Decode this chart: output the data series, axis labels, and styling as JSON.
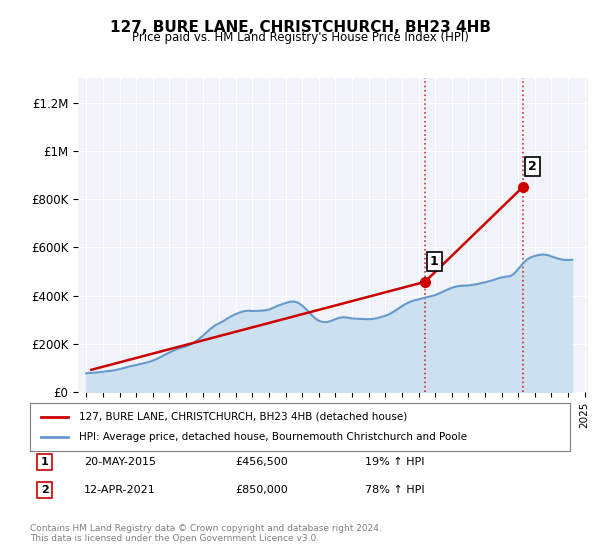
{
  "title": "127, BURE LANE, CHRISTCHURCH, BH23 4HB",
  "subtitle": "Price paid vs. HM Land Registry's House Price Index (HPI)",
  "ylabel_ticks": [
    "£0",
    "£200K",
    "£400K",
    "£600K",
    "£800K",
    "£1M",
    "£1.2M"
  ],
  "ytick_values": [
    0,
    200000,
    400000,
    600000,
    800000,
    1000000,
    1200000
  ],
  "ylim": [
    0,
    1300000
  ],
  "house_color": "#cc0000",
  "hpi_color": "#6699cc",
  "hpi_fill_color": "#cce0f0",
  "bg_color": "#f0f4fa",
  "legend_label_house": "127, BURE LANE, CHRISTCHURCH, BH23 4HB (detached house)",
  "legend_label_hpi": "HPI: Average price, detached house, Bournemouth Christchurch and Poole",
  "sale1_label": "1",
  "sale1_date": "20-MAY-2015",
  "sale1_price": "£456,500",
  "sale1_pct": "19% ↑ HPI",
  "sale2_label": "2",
  "sale2_date": "12-APR-2021",
  "sale2_price": "£850,000",
  "sale2_pct": "78% ↑ HPI",
  "footer": "Contains HM Land Registry data © Crown copyright and database right 2024.\nThis data is licensed under the Open Government Licence v3.0.",
  "hpi_years": [
    1995,
    1995.25,
    1995.5,
    1995.75,
    1996,
    1996.25,
    1996.5,
    1996.75,
    1997,
    1997.25,
    1997.5,
    1997.75,
    1998,
    1998.25,
    1998.5,
    1998.75,
    1999,
    1999.25,
    1999.5,
    1999.75,
    2000,
    2000.25,
    2000.5,
    2000.75,
    2001,
    2001.25,
    2001.5,
    2001.75,
    2002,
    2002.25,
    2002.5,
    2002.75,
    2003,
    2003.25,
    2003.5,
    2003.75,
    2004,
    2004.25,
    2004.5,
    2004.75,
    2005,
    2005.25,
    2005.5,
    2005.75,
    2006,
    2006.25,
    2006.5,
    2006.75,
    2007,
    2007.25,
    2007.5,
    2007.75,
    2008,
    2008.25,
    2008.5,
    2008.75,
    2009,
    2009.25,
    2009.5,
    2009.75,
    2010,
    2010.25,
    2010.5,
    2010.75,
    2011,
    2011.25,
    2011.5,
    2011.75,
    2012,
    2012.25,
    2012.5,
    2012.75,
    2013,
    2013.25,
    2013.5,
    2013.75,
    2014,
    2014.25,
    2014.5,
    2014.75,
    2015,
    2015.25,
    2015.5,
    2015.75,
    2016,
    2016.25,
    2016.5,
    2016.75,
    2017,
    2017.25,
    2017.5,
    2017.75,
    2018,
    2018.25,
    2018.5,
    2018.75,
    2019,
    2019.25,
    2019.5,
    2019.75,
    2020,
    2020.25,
    2020.5,
    2020.75,
    2021,
    2021.25,
    2021.5,
    2021.75,
    2022,
    2022.25,
    2022.5,
    2022.75,
    2023,
    2023.25,
    2023.5,
    2023.75,
    2024,
    2024.25
  ],
  "hpi_values": [
    78000,
    79000,
    80000,
    82000,
    84000,
    86000,
    88000,
    91000,
    95000,
    99000,
    104000,
    108000,
    112000,
    116000,
    120000,
    124000,
    130000,
    137000,
    146000,
    155000,
    164000,
    172000,
    179000,
    184000,
    189000,
    196000,
    206000,
    218000,
    232000,
    248000,
    263000,
    276000,
    285000,
    294000,
    305000,
    315000,
    323000,
    330000,
    335000,
    337000,
    336000,
    336000,
    337000,
    338000,
    342000,
    349000,
    357000,
    363000,
    369000,
    374000,
    375000,
    370000,
    358000,
    342000,
    324000,
    307000,
    295000,
    290000,
    290000,
    295000,
    302000,
    308000,
    310000,
    308000,
    305000,
    304000,
    303000,
    302000,
    302000,
    303000,
    306000,
    311000,
    316000,
    323000,
    333000,
    344000,
    356000,
    366000,
    374000,
    380000,
    384000,
    389000,
    393000,
    397000,
    402000,
    409000,
    417000,
    425000,
    432000,
    437000,
    440000,
    441000,
    442000,
    444000,
    447000,
    451000,
    455000,
    459000,
    464000,
    470000,
    475000,
    478000,
    480000,
    490000,
    510000,
    530000,
    548000,
    558000,
    564000,
    568000,
    570000,
    568000,
    562000,
    556000,
    551000,
    548000,
    547000,
    548000
  ],
  "house_years": [
    1995.3,
    2015.38,
    2021.28
  ],
  "house_values": [
    92000,
    456500,
    850000
  ],
  "sale1_x": 2015.38,
  "sale1_y": 456500,
  "sale2_x": 2021.28,
  "sale2_y": 850000,
  "vline1_x": 2015.38,
  "vline2_x": 2021.28,
  "xtick_years": [
    1995,
    1996,
    1997,
    1998,
    1999,
    2000,
    2001,
    2002,
    2003,
    2004,
    2005,
    2006,
    2007,
    2008,
    2009,
    2010,
    2011,
    2012,
    2013,
    2014,
    2015,
    2016,
    2017,
    2018,
    2019,
    2020,
    2021,
    2022,
    2023,
    2024,
    2025
  ]
}
